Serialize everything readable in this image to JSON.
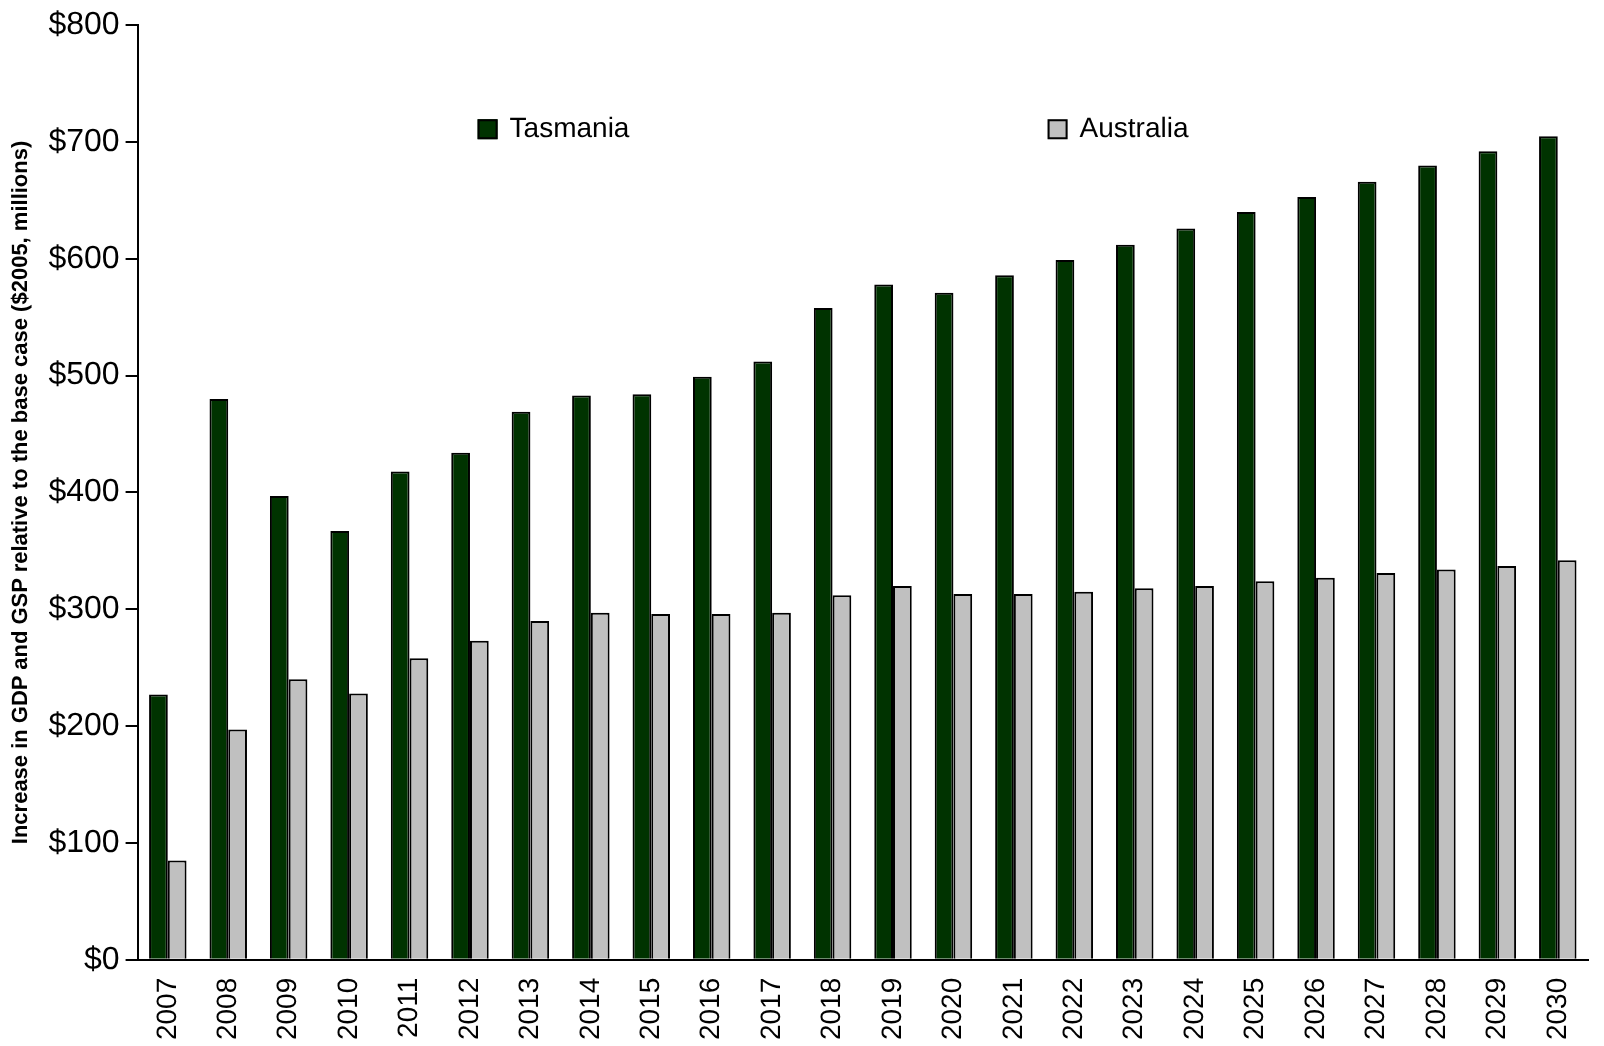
{
  "chart_data": {
    "type": "bar",
    "ylabel": "Increase in GDP and GSP relative to the base case ($2005, millions)",
    "categories": [
      "2007",
      "2008",
      "2009",
      "2010",
      "2011",
      "2012",
      "2013",
      "2014",
      "2015",
      "2016",
      "2017",
      "2018",
      "2019",
      "2020",
      "2021",
      "2022",
      "2023",
      "2024",
      "2025",
      "2026",
      "2027",
      "2028",
      "2029",
      "2030"
    ],
    "series": [
      {
        "name": "Tasmania",
        "color": "#003300",
        "values": [
          227,
          480,
          397,
          367,
          418,
          434,
          469,
          483,
          484,
          499,
          512,
          558,
          578,
          571,
          586,
          599,
          612,
          626,
          640,
          653,
          666,
          680,
          692,
          705
        ]
      },
      {
        "name": "Australia",
        "color": "#c0c0c0",
        "values": [
          85,
          197,
          240,
          228,
          258,
          273,
          290,
          297,
          296,
          296,
          297,
          312,
          320,
          313,
          313,
          315,
          318,
          320,
          324,
          327,
          331,
          334,
          337,
          342
        ]
      }
    ],
    "ylim": [
      0,
      800
    ],
    "yticks": [
      {
        "value": 0,
        "label": "$0"
      },
      {
        "value": 100,
        "label": "$100"
      },
      {
        "value": 200,
        "label": "$200"
      },
      {
        "value": 300,
        "label": "$300"
      },
      {
        "value": 400,
        "label": "$400"
      },
      {
        "value": 500,
        "label": "$500"
      },
      {
        "value": 600,
        "label": "$600"
      },
      {
        "value": 700,
        "label": "$700"
      },
      {
        "value": 800,
        "label": "$800"
      }
    ],
    "grid": false,
    "legend": "top"
  }
}
